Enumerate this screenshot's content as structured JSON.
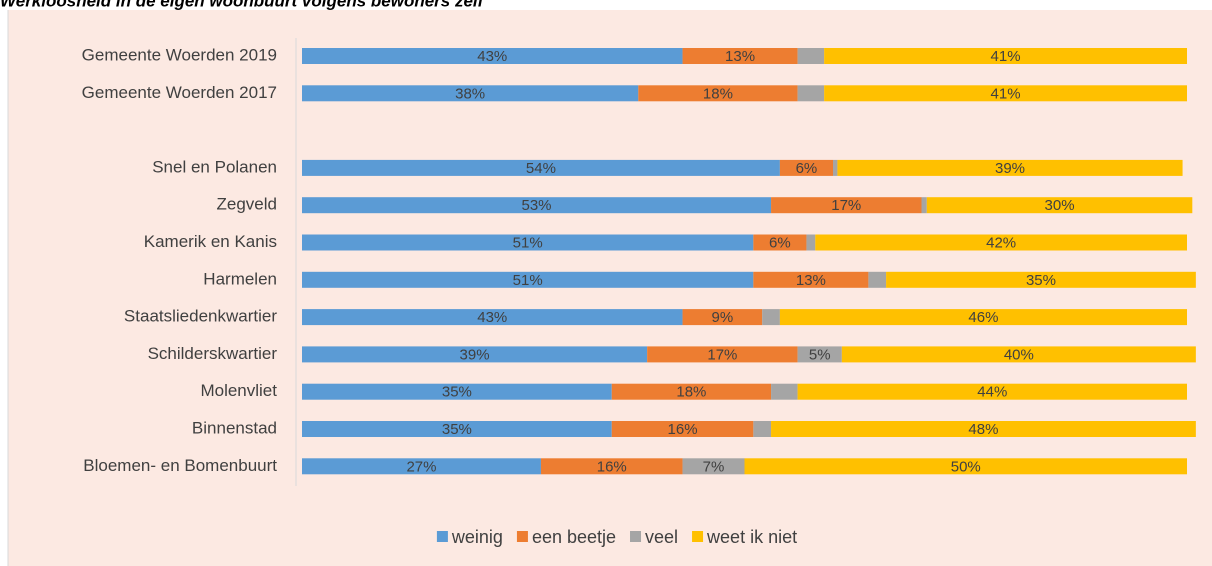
{
  "chart_data": {
    "type": "stacked-barh",
    "title": "Werkloosheid in de eigen woonbuurt volgens bewoners zelf",
    "categories": [
      "Gemeente Woerden 2019",
      "Gemeente Woerden 2017",
      null,
      "Snel en Polanen",
      "Zegveld",
      "Kamerik en Kanis",
      "Harmelen",
      "Staatsliedenkwartier",
      "Schilderskwartier",
      "Molenvliet",
      "Binnenstad",
      "Bloemen- en Bomenbuurt"
    ],
    "xlim": [
      0,
      100
    ],
    "legend": "bottom",
    "series": [
      {
        "name": "weinig",
        "color": "#5b9bd5",
        "values": [
          43,
          38,
          null,
          54,
          53,
          51,
          51,
          43,
          39,
          35,
          35,
          27
        ],
        "value_labels": [
          "43%",
          "38%",
          null,
          "54%",
          "53%",
          "51%",
          "51%",
          "43%",
          "39%",
          "35%",
          "35%",
          "27%"
        ]
      },
      {
        "name": "een beetje",
        "color": "#ed7d31",
        "values": [
          13,
          18,
          null,
          6,
          17,
          6,
          13,
          9,
          17,
          18,
          16,
          16
        ],
        "value_labels": [
          "13%",
          "18%",
          null,
          "6%",
          "17%",
          "6%",
          "13%",
          "9%",
          "17%",
          "18%",
          "16%",
          "16%"
        ]
      },
      {
        "name": "veel",
        "color": "#a5a5a5",
        "values": [
          3,
          3,
          null,
          0.5,
          0.6,
          1,
          2,
          2,
          5,
          3,
          2,
          7
        ],
        "value_labels": [
          null,
          null,
          null,
          null,
          null,
          null,
          null,
          null,
          "5%",
          null,
          null,
          "7%"
        ]
      },
      {
        "name": "weet ik niet",
        "color": "#ffc000",
        "values": [
          41,
          41,
          null,
          39,
          30,
          42,
          35,
          46,
          40,
          44,
          48,
          50
        ],
        "value_labels": [
          "41%",
          "41%",
          null,
          "39%",
          "30%",
          "42%",
          "35%",
          "46%",
          "40%",
          "44%",
          "48%",
          "50%"
        ]
      }
    ]
  }
}
